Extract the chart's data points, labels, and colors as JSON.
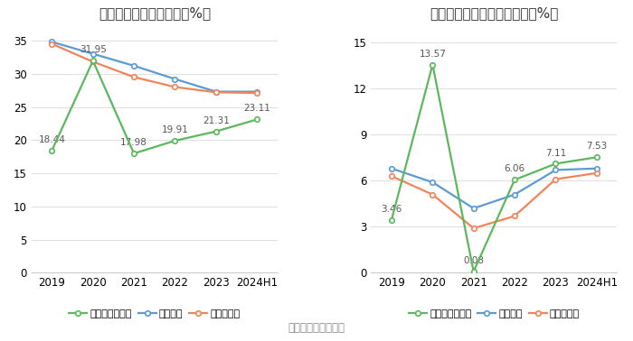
{
  "chart1": {
    "title": "近年来资产负债率情况（%）",
    "xticklabels": [
      "2019",
      "2020",
      "2021",
      "2022",
      "2023",
      "2024H1"
    ],
    "ylim": [
      0,
      37
    ],
    "yticks": [
      0,
      5,
      10,
      15,
      20,
      25,
      30,
      35
    ],
    "company": {
      "label": "公司资产负债率",
      "values": [
        18.44,
        31.95,
        17.98,
        19.91,
        21.31,
        23.11
      ],
      "color": "#5cb85c"
    },
    "industry_mean": {
      "label": "行业均值",
      "values": [
        34.8,
        33.0,
        31.2,
        29.2,
        27.3,
        27.3
      ],
      "color": "#5b9bd5"
    },
    "industry_median": {
      "label": "行业中位数",
      "values": [
        34.5,
        31.8,
        29.5,
        28.0,
        27.2,
        27.1
      ],
      "color": "#f0845a"
    }
  },
  "chart2": {
    "title": "近年来有息资产负债率情况（%）",
    "xticklabels": [
      "2019",
      "2020",
      "2021",
      "2022",
      "2023",
      "2024H1"
    ],
    "ylim": [
      0,
      16
    ],
    "yticks": [
      0,
      3,
      6,
      9,
      12,
      15
    ],
    "company": {
      "label": "有息资产负债率",
      "values": [
        3.46,
        13.57,
        0.08,
        6.06,
        7.11,
        7.53
      ],
      "color": "#5cb85c"
    },
    "industry_mean": {
      "label": "行业均值",
      "values": [
        6.8,
        5.9,
        4.2,
        5.1,
        6.7,
        6.8
      ],
      "color": "#5b9bd5"
    },
    "industry_median": {
      "label": "行业中位数",
      "values": [
        6.3,
        5.1,
        2.9,
        3.7,
        6.1,
        6.5
      ],
      "color": "#f0845a"
    }
  },
  "source_text": "数据来源：恒生聚源",
  "background_color": "#ffffff",
  "grid_color": "#e0e0e0",
  "marker": "o",
  "markersize": 4,
  "linewidth": 1.6,
  "annotation_fontsize": 7.5,
  "title_fontsize": 11,
  "tick_fontsize": 8.5,
  "legend_fontsize": 8,
  "source_fontsize": 8.5
}
